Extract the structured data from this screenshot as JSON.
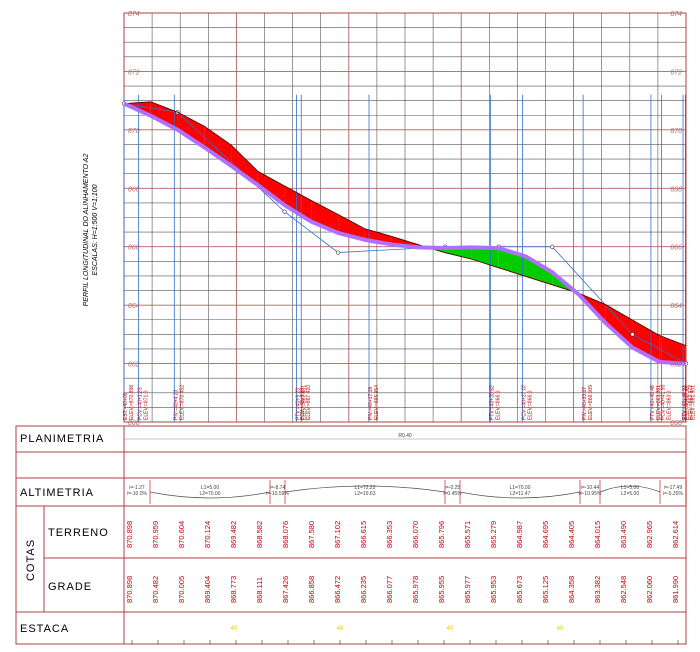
{
  "side_title": {
    "line1": "PERFIL LONGITUDINAL DO ALINHAMENTO A2",
    "line2": "ESCALAS: H=1:500 V=1:100"
  },
  "elevation_ticks": {
    "left": [
      "874",
      "872",
      "870",
      "868",
      "866",
      "864",
      "862",
      "860"
    ],
    "right": [
      "874",
      "872",
      "870",
      "868",
      "866",
      "864",
      "862",
      "860"
    ]
  },
  "vertical_point_labels": [
    [
      "EST:=40+00",
      "ELEV:=870.898"
    ],
    [
      "PCV:=40+1.23",
      "ELEV:=871.0"
    ],
    [
      "PIV:=40+4.23",
      "ELEV:=870.452"
    ],
    [
      "PTV:=40+9.23",
      "ELEV:=867.431"
    ],
    [
      "PCV:=40+9.87",
      "ELEV:=867.420"
    ],
    [
      "PIV:=40+17.19",
      "ELEV:=865.954"
    ],
    [
      "PTV:=40+20.62",
      "ELEV:=866.0"
    ],
    [
      "PCV:=40+27.07",
      "ELEV:=866.0"
    ],
    [
      "PIV:=40+33.07",
      "ELEV:=866.005"
    ],
    [
      "PTV:=40+40.48",
      "ELEV:=863.381"
    ],
    [
      "PCV:=40+41.93",
      "ELEV:=863.0"
    ],
    [
      "PTV:=40+46.93",
      "ELEV:=862.972"
    ],
    [
      "EST:=40+47.49",
      "ELEV:=861.901"
    ]
  ],
  "rows": {
    "planimetria": "PLANIMETRIA",
    "altimetria": "ALTIMETRIA",
    "cotas": "COTAS",
    "terreno": "TERRENO",
    "grade": "GRADE",
    "estaca": "ESTACA"
  },
  "planimetria_value": "R0.40",
  "altimetria_segments": [
    [
      "i=-1.27",
      "i=-10.0%"
    ],
    [
      "L1=5.00",
      "L2=70.00"
    ],
    [
      "i=-8.74",
      "i=-10.59%"
    ],
    [
      "L1=72.22",
      "L2=19.63"
    ],
    [
      "i=-0.25",
      "i=0.45%"
    ],
    [
      "L1=70.00",
      "L2=11.47"
    ],
    [
      "i=-10.44",
      "i=-10.95%"
    ],
    [
      "L1=5.00",
      "L2=5.00"
    ],
    [
      "i=-17.49",
      "i=-5.35%"
    ]
  ],
  "terreno_values": [
    "870.898",
    "870.959",
    "870.604",
    "870.124",
    "869.482",
    "868.582",
    "868.076",
    "867.580",
    "867.102",
    "866.615",
    "866.353",
    "866.070",
    "865.796",
    "865.571",
    "865.279",
    "864.987",
    "864.695",
    "864.405",
    "864.015",
    "863.490",
    "862.965",
    "862.614"
  ],
  "grade_values": [
    "870.898",
    "870.482",
    "870.005",
    "869.404",
    "868.773",
    "868.111",
    "867.426",
    "866.858",
    "866.472",
    "866.235",
    "866.077",
    "865.978",
    "865.955",
    "865.977",
    "865.953",
    "865.673",
    "865.125",
    "864.358",
    "863.382",
    "862.548",
    "862.060",
    "861.990"
  ],
  "estaca_labels": [
    "40",
    "40",
    "40",
    "40"
  ],
  "chart_data": {
    "type": "line",
    "title": "PERFIL LONGITUDINAL DO ALINHAMENTO A2",
    "ylabel": "",
    "ylim": [
      860,
      874
    ],
    "colors": {
      "terrain_fill_cut": "#ff0000",
      "terrain_fill_fill": "#00cc00",
      "grade_line": "#b070ff",
      "vertical_lines": "#3070d0"
    },
    "x_stations": [
      0,
      2.25,
      4.5,
      6.75,
      9,
      11.25,
      13.5,
      15.75,
      18,
      20.25,
      22.5,
      24.75,
      27,
      29.25,
      31.5,
      33.75,
      36,
      38.25,
      40.5,
      42.75,
      45,
      47.25
    ],
    "series": [
      {
        "name": "",
        "values": [
          870.898,
          870.959,
          870.604,
          870.124,
          869.482,
          868.582,
          868.076,
          867.58,
          867.102,
          866.615,
          866.353,
          866.07,
          865.796,
          865.571,
          865.279,
          864.987,
          864.695,
          864.405,
          864.015,
          863.49,
          862.965,
          862.614
        ]
      },
      {
        "name": "",
        "values": [
          870.898,
          870.482,
          870.005,
          869.404,
          868.773,
          868.111,
          867.426,
          866.858,
          866.472,
          866.235,
          866.077,
          865.978,
          865.955,
          865.977,
          865.953,
          865.673,
          865.125,
          864.358,
          863.382,
          862.548,
          862.06,
          861.99
        ]
      }
    ],
    "vertical_polyline": [
      [
        0,
        870.9
      ],
      [
        4.5,
        870.6
      ],
      [
        13.5,
        867.2
      ],
      [
        18,
        865.8
      ],
      [
        27,
        866.0
      ],
      [
        31.5,
        866.0
      ],
      [
        36,
        866.0
      ],
      [
        42.75,
        863.0
      ],
      [
        47.25,
        862.0
      ]
    ]
  }
}
